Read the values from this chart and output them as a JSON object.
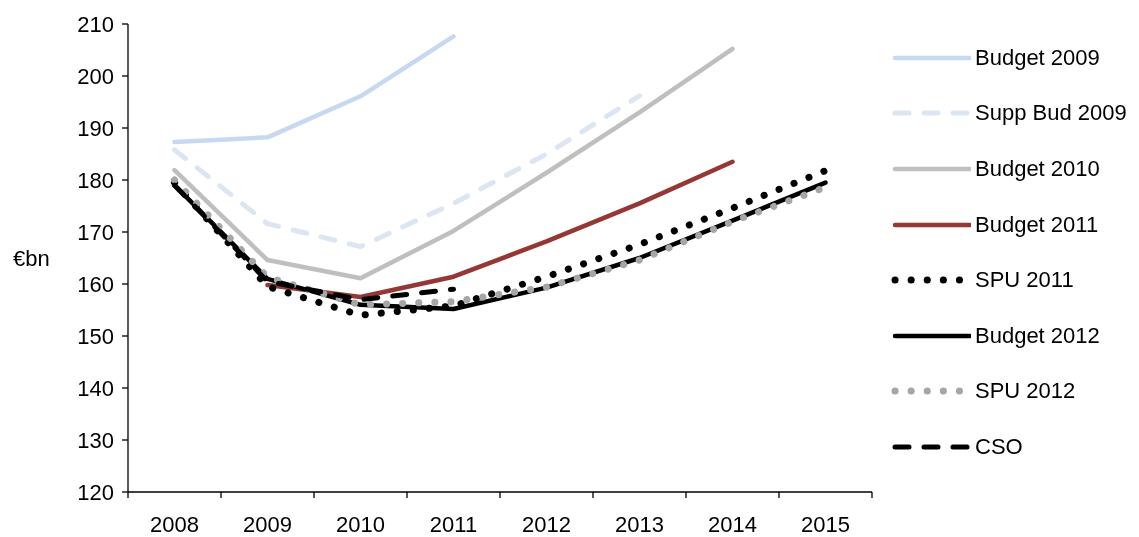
{
  "chart_data": {
    "type": "line",
    "categories": [
      "2008",
      "2009",
      "2010",
      "2011",
      "2012",
      "2013",
      "2014",
      "2015"
    ],
    "ylabel": "€bn",
    "ylim": [
      120,
      210
    ],
    "yticks": [
      120,
      130,
      140,
      150,
      160,
      170,
      180,
      190,
      200,
      210
    ],
    "legend": "right",
    "series": [
      {
        "name": "Budget 2009",
        "color": "#c6d9f1",
        "line_style": "solid",
        "values": [
          187.3,
          188.2,
          196.1,
          207.6,
          null,
          null,
          null,
          null
        ]
      },
      {
        "name": "Supp Bud 2009",
        "color": "#dce6f2",
        "line_style": "dashed",
        "values": [
          185.8,
          171.6,
          167.2,
          175.5,
          185,
          196.2,
          null,
          null
        ]
      },
      {
        "name": "Budget 2010",
        "color": "#bfbfbf",
        "line_style": "solid",
        "values": [
          181.9,
          164.6,
          161.1,
          170.2,
          181.4,
          193,
          205.2,
          null
        ]
      },
      {
        "name": "Budget 2011",
        "color": "#953735",
        "line_style": "solid",
        "values": [
          null,
          159.8,
          157.5,
          161.4,
          168.2,
          175.5,
          183.5,
          null
        ]
      },
      {
        "name": "SPU 2011",
        "color": "#000000",
        "line_style": "dotted",
        "values": [
          179.5,
          159.5,
          154,
          155.8,
          161.4,
          167.6,
          174.6,
          181.8
        ]
      },
      {
        "name": "Budget 2012",
        "color": "#000000",
        "line_style": "solid",
        "values": [
          179,
          161,
          156,
          155.2,
          159.3,
          165,
          172.2,
          179.5
        ]
      },
      {
        "name": "SPU 2012",
        "color": "#a6a6a6",
        "line_style": "dotted",
        "values": [
          180,
          161.3,
          156,
          156.6,
          159.4,
          164.6,
          172,
          178.6
        ]
      },
      {
        "name": "CSO",
        "color": "#000000",
        "line_style": "dashed",
        "values": [
          179,
          160.5,
          157,
          159,
          null,
          null,
          null,
          null
        ]
      }
    ]
  }
}
